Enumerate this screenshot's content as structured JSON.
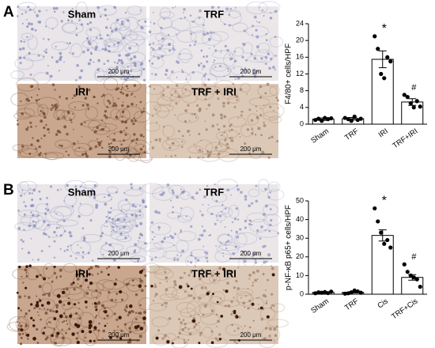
{
  "panels": [
    {
      "label": "A",
      "images": [
        {
          "label": "Sham",
          "scale": "200 μm"
        },
        {
          "label": "TRF",
          "scale": "200 μm"
        },
        {
          "label": "IRI",
          "scale": "200 μm"
        },
        {
          "label": "TRF + IRI",
          "scale": "200 μm"
        }
      ]
    },
    {
      "label": "B",
      "images": [
        {
          "label": "Sham",
          "scale": "200 μm"
        },
        {
          "label": "TRF",
          "scale": "200 μm"
        },
        {
          "label": "IRI",
          "scale": "200 μm"
        },
        {
          "label": "TRF + IRI",
          "scale": "200 μm"
        }
      ]
    }
  ],
  "chart_data": [
    {
      "type": "bar",
      "ylabel": "F4/80+ cells/HPF",
      "categories": [
        "Sham",
        "TRF",
        "IRI",
        "TRF+IRI"
      ],
      "values": [
        1.2,
        1.3,
        15.5,
        5.3
      ],
      "errors": [
        0.3,
        0.3,
        2,
        0.8
      ],
      "points": [
        [
          1.0,
          1.3,
          0.8,
          1.5,
          1.2,
          1.4
        ],
        [
          1.5,
          1.2,
          0.8,
          1.8,
          1.0,
          1.3
        ],
        [
          21,
          18,
          12,
          11,
          16,
          15
        ],
        [
          7,
          6.5,
          5,
          4,
          5.5,
          4.2
        ]
      ],
      "annotations": [
        null,
        null,
        "*",
        "#"
      ],
      "ylim": [
        0,
        24
      ],
      "yticks": [
        0,
        4,
        8,
        12,
        16,
        20,
        24
      ],
      "bar_color": "#ffffff",
      "edge_color": "#000000",
      "point_color": "#000000"
    },
    {
      "type": "bar",
      "ylabel": "p-NF-κB p65+ cells/HPF",
      "categories": [
        "Sham",
        "TRF",
        "Cis",
        "TRF+Cis"
      ],
      "values": [
        1,
        1,
        31.5,
        9
      ],
      "errors": [
        0.3,
        0.3,
        3,
        1.5
      ],
      "points": [
        [
          0.5,
          1,
          0.8,
          1.2,
          0.6,
          1.4
        ],
        [
          0.3,
          0.5,
          1,
          2,
          1.5,
          0.8
        ],
        [
          46,
          39,
          33,
          27,
          29,
          25
        ],
        [
          16,
          12,
          10,
          9,
          8,
          4
        ]
      ],
      "annotations": [
        null,
        null,
        "*",
        "#"
      ],
      "ylim": [
        0,
        50
      ],
      "yticks": [
        0,
        10,
        20,
        30,
        40,
        50
      ],
      "bar_color": "#ffffff",
      "edge_color": "#000000",
      "point_color": "#000000"
    }
  ]
}
